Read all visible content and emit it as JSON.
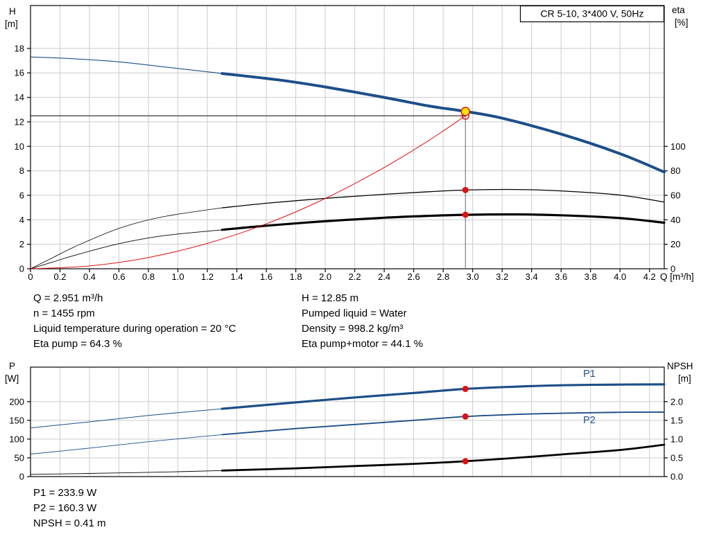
{
  "title_box": {
    "text": "CR 5-10, 3*400 V, 50Hz"
  },
  "colors": {
    "blue": "#1d4e89",
    "red": "#dd1111",
    "yellow": "#ffe000",
    "grid": "#cccccc",
    "guide": "#666666",
    "black": "#000000"
  },
  "duty_annotations": {
    "left": [
      "Q = 2.951 m³/h",
      "n = 1455 rpm",
      "Liquid temperature during operation = 20 °C",
      "Eta pump = 64.3 %"
    ],
    "right": [
      "H = 12.85 m",
      "Pumped liquid = Water",
      "Density = 998.2 kg/m³",
      "Eta pump+motor = 44.1 %"
    ],
    "bottom": [
      "P1 = 233.9 W",
      "P2 = 160.3 W",
      "NPSH = 0.41 m"
    ]
  },
  "chart_data": [
    {
      "type": "line",
      "name": "qh-eta-chart",
      "x_axis": {
        "label": "Q [m³/h]",
        "min": 0,
        "max": 4.3,
        "ticks": [
          [
            0,
            "0"
          ],
          [
            0.2,
            "0.2"
          ],
          [
            0.4,
            "0.4"
          ],
          [
            0.6,
            "0.6"
          ],
          [
            0.8,
            "0.8"
          ],
          [
            1.0,
            "1.0"
          ],
          [
            1.2,
            "1.2"
          ],
          [
            1.4,
            "1.4"
          ],
          [
            1.6,
            "1.6"
          ],
          [
            1.8,
            "1.8"
          ],
          [
            2.0,
            "2.0"
          ],
          [
            2.2,
            "2.2"
          ],
          [
            2.4,
            "2.4"
          ],
          [
            2.6,
            "2.6"
          ],
          [
            2.8,
            "2.8"
          ],
          [
            3.0,
            "3.0"
          ],
          [
            3.2,
            "3.2"
          ],
          [
            3.4,
            "3.4"
          ],
          [
            3.6,
            "3.6"
          ],
          [
            3.8,
            "3.8"
          ],
          [
            4.0,
            "4.0"
          ],
          [
            4.2,
            "4.2"
          ]
        ]
      },
      "y_left": {
        "label": [
          "H",
          "[m]"
        ],
        "min": 0,
        "max": 21.5,
        "ticks": [
          [
            0,
            "0"
          ],
          [
            2,
            "2"
          ],
          [
            4,
            "4"
          ],
          [
            6,
            "6"
          ],
          [
            8,
            "8"
          ],
          [
            10,
            "10"
          ],
          [
            12,
            "12"
          ],
          [
            14,
            "14"
          ],
          [
            16,
            "16"
          ],
          [
            18,
            "18"
          ]
        ]
      },
      "y_right": {
        "label": [
          "eta",
          "[%]"
        ],
        "min": 0,
        "max": 215,
        "ticks": [
          [
            0,
            "0"
          ],
          [
            20,
            "20"
          ],
          [
            40,
            "40"
          ],
          [
            60,
            "60"
          ],
          [
            80,
            "80"
          ],
          [
            100,
            "100"
          ]
        ]
      },
      "series": [
        {
          "name": "pump-curve-qh",
          "axis": "left",
          "color": "#1d4e89",
          "width": 4,
          "thin_width": 1.1,
          "thin_until": 1.3,
          "points": [
            [
              0,
              17.3
            ],
            [
              0.3,
              17.15
            ],
            [
              0.6,
              16.9
            ],
            [
              0.9,
              16.5
            ],
            [
              1.3,
              15.95
            ],
            [
              1.7,
              15.4
            ],
            [
              2.0,
              14.85
            ],
            [
              2.4,
              14.0
            ],
            [
              2.7,
              13.3
            ],
            [
              2.951,
              12.85
            ],
            [
              3.2,
              12.3
            ],
            [
              3.6,
              11.0
            ],
            [
              4.0,
              9.4
            ],
            [
              4.3,
              7.9
            ]
          ]
        },
        {
          "name": "eta-pump-curve",
          "axis": "right",
          "color": "#000000",
          "width": 1.3,
          "thin_width": 0.8,
          "thin_until": 1.3,
          "points": [
            [
              0,
              0
            ],
            [
              0.15,
              9
            ],
            [
              0.3,
              18
            ],
            [
              0.6,
              33
            ],
            [
              0.9,
              42.5
            ],
            [
              1.3,
              49.8
            ],
            [
              1.6,
              53.5
            ],
            [
              2.0,
              57.5
            ],
            [
              2.4,
              60.8
            ],
            [
              2.7,
              62.9
            ],
            [
              2.951,
              64.3
            ],
            [
              3.3,
              64.7
            ],
            [
              3.6,
              63.6
            ],
            [
              4.0,
              60.2
            ],
            [
              4.3,
              54.5
            ]
          ]
        },
        {
          "name": "eta-pump-motor-curve",
          "axis": "right",
          "color": "#000000",
          "width": 3.2,
          "thin_width": 0.9,
          "thin_until": 1.3,
          "points": [
            [
              0,
              0
            ],
            [
              0.15,
              5.5
            ],
            [
              0.3,
              11
            ],
            [
              0.6,
              20.5
            ],
            [
              0.9,
              27
            ],
            [
              1.3,
              31.8
            ],
            [
              1.6,
              35.2
            ],
            [
              2.0,
              38.8
            ],
            [
              2.4,
              41.7
            ],
            [
              2.7,
              43.2
            ],
            [
              2.951,
              44.1
            ],
            [
              3.3,
              44.4
            ],
            [
              3.6,
              43.7
            ],
            [
              4.0,
              41.4
            ],
            [
              4.3,
              37.6
            ]
          ]
        },
        {
          "name": "system-curve",
          "axis": "left",
          "color": "#dd1111",
          "width": 1,
          "points": [
            [
              0,
              0
            ],
            [
              0.4,
              0.23
            ],
            [
              0.8,
              0.92
            ],
            [
              1.2,
              2.07
            ],
            [
              1.6,
              3.67
            ],
            [
              2.0,
              5.74
            ],
            [
              2.4,
              8.27
            ],
            [
              2.7,
              10.46
            ],
            [
              2.951,
              12.5
            ]
          ]
        }
      ],
      "guides": [
        {
          "type": "vline",
          "x": 2.951,
          "y1": 0,
          "y2": 12.85,
          "axis": "left"
        },
        {
          "type": "hline",
          "y": 12.5,
          "x1": 0,
          "x2": 2.951,
          "axis": "left"
        }
      ],
      "markers": [
        {
          "name": "requested-duty-point",
          "axis": "left",
          "x": 2.951,
          "y": 12.5,
          "style": "open-red"
        },
        {
          "name": "actual-duty-point",
          "axis": "left",
          "x": 2.951,
          "y": 12.85,
          "style": "yellow"
        },
        {
          "name": "eta-pump-duty-point",
          "axis": "right",
          "x": 2.951,
          "y": 64.3,
          "style": "red"
        },
        {
          "name": "eta-total-duty-point",
          "axis": "right",
          "x": 2.951,
          "y": 44.1,
          "style": "red"
        }
      ]
    },
    {
      "type": "line",
      "name": "power-npsh-chart",
      "x_axis": {
        "label": "",
        "min": 0,
        "max": 4.3,
        "ticks": [
          [
            0,
            "0"
          ],
          [
            0.2,
            "0.2"
          ],
          [
            0.4,
            "0.4"
          ],
          [
            0.6,
            "0.6"
          ],
          [
            0.8,
            "0.8"
          ],
          [
            1.0,
            "1.0"
          ],
          [
            1.2,
            "1.2"
          ],
          [
            1.4,
            "1.4"
          ],
          [
            1.6,
            "1.6"
          ],
          [
            1.8,
            "1.8"
          ],
          [
            2.0,
            "2.0"
          ],
          [
            2.2,
            "2.2"
          ],
          [
            2.4,
            "2.4"
          ],
          [
            2.6,
            "2.6"
          ],
          [
            2.8,
            "2.8"
          ],
          [
            3.0,
            "3.0"
          ],
          [
            3.2,
            "3.2"
          ],
          [
            3.4,
            "3.4"
          ],
          [
            3.6,
            "3.6"
          ],
          [
            3.8,
            "3.8"
          ],
          [
            4.0,
            "4.0"
          ],
          [
            4.2,
            "4.2"
          ]
        ]
      },
      "y_left": {
        "label": [
          "P",
          "[W]"
        ],
        "min": 0,
        "max": 292,
        "ticks": [
          [
            0,
            "0"
          ],
          [
            50,
            "50"
          ],
          [
            100,
            "100"
          ],
          [
            150,
            "150"
          ],
          [
            200,
            "200"
          ]
        ]
      },
      "y_right": {
        "label": [
          "NPSH",
          "[m]"
        ],
        "min": 0,
        "max": 2.92,
        "ticks": [
          [
            0,
            "0.0"
          ],
          [
            0.5,
            "0.5"
          ],
          [
            1,
            "1.0"
          ],
          [
            1.5,
            "1.5"
          ],
          [
            2,
            "2.0"
          ]
        ]
      },
      "series": [
        {
          "name": "p1-curve",
          "axis": "left",
          "color": "#1d4e89",
          "width": 3.2,
          "thin_width": 1,
          "thin_until": 1.3,
          "points": [
            [
              0,
              130
            ],
            [
              0.4,
              146
            ],
            [
              0.8,
              163
            ],
            [
              1.3,
              181
            ],
            [
              1.8,
              198
            ],
            [
              2.2,
              211
            ],
            [
              2.6,
              223
            ],
            [
              2.951,
              233.9
            ],
            [
              3.3,
              240
            ],
            [
              3.6,
              243.5
            ],
            [
              4.0,
              245.5
            ],
            [
              4.3,
              246
            ]
          ]
        },
        {
          "name": "p2-curve",
          "axis": "left",
          "color": "#1d4e89",
          "width": 1.9,
          "thin_width": 0.9,
          "thin_until": 1.3,
          "points": [
            [
              0,
              60
            ],
            [
              0.4,
              76
            ],
            [
              0.8,
              93
            ],
            [
              1.3,
              112
            ],
            [
              1.8,
              128
            ],
            [
              2.2,
              139
            ],
            [
              2.6,
              150
            ],
            [
              2.951,
              160.3
            ],
            [
              3.3,
              166
            ],
            [
              3.6,
              169
            ],
            [
              4.0,
              171.5
            ],
            [
              4.3,
              172
            ]
          ]
        },
        {
          "name": "npsh-curve",
          "axis": "right",
          "color": "#000000",
          "width": 2.8,
          "thin_width": 0.9,
          "thin_until": 1.3,
          "points": [
            [
              0,
              0.06
            ],
            [
              0.5,
              0.09
            ],
            [
              1.0,
              0.13
            ],
            [
              1.3,
              0.16
            ],
            [
              1.8,
              0.22
            ],
            [
              2.2,
              0.28
            ],
            [
              2.6,
              0.34
            ],
            [
              2.951,
              0.41
            ],
            [
              3.3,
              0.5
            ],
            [
              3.6,
              0.59
            ],
            [
              4.0,
              0.71
            ],
            [
              4.3,
              0.85
            ]
          ]
        }
      ],
      "markers": [
        {
          "name": "p1-duty-point",
          "axis": "left",
          "x": 2.951,
          "y": 233.9,
          "style": "red"
        },
        {
          "name": "p2-duty-point",
          "axis": "left",
          "x": 2.951,
          "y": 160.3,
          "style": "red"
        },
        {
          "name": "npsh-duty-point",
          "axis": "right",
          "x": 2.951,
          "y": 0.41,
          "style": "red"
        }
      ],
      "series_labels": [
        {
          "text": "P1",
          "x": 3.75,
          "y": 266,
          "axis": "left"
        },
        {
          "text": "P2",
          "x": 3.75,
          "y": 142,
          "axis": "left"
        }
      ]
    }
  ]
}
